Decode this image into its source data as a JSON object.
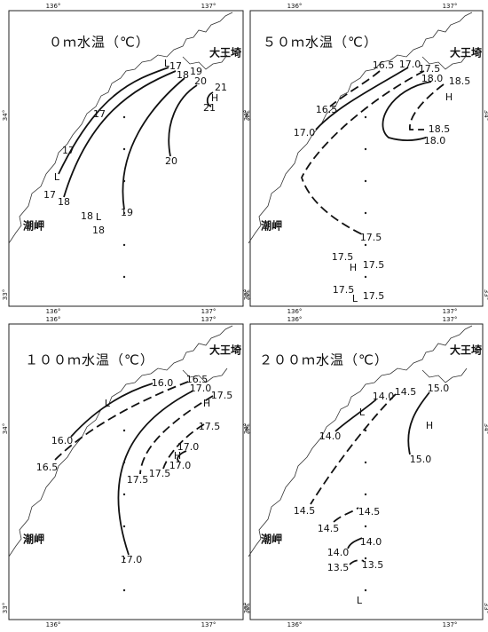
{
  "panels": [
    {
      "title": "０ｍ水温（℃）",
      "cape_east": "大王埼",
      "cape_west": "潮岬",
      "lon_labels": [
        "136°",
        "137°"
      ],
      "lat_labels": [
        "34°",
        "33°"
      ],
      "labels": [
        "L",
        "17",
        "18",
        "19",
        "20",
        "21",
        "H",
        "21",
        "17",
        "17",
        "L",
        "17",
        "18",
        "19",
        "20",
        "18",
        "L",
        "18"
      ]
    },
    {
      "title": "５０ｍ水温（℃）",
      "cape_east": "大王埼",
      "cape_west": "潮岬",
      "lon_labels": [
        "136°",
        "137°"
      ],
      "lat_labels": [
        "34°",
        "33°"
      ],
      "labels": [
        "16.5",
        "17.0",
        "17.5",
        "18.0",
        "18.5",
        "H",
        "16.5",
        "17.0",
        "18.5",
        "18.0",
        "17.5",
        "17.5",
        "H",
        "17.5",
        "17.5",
        "L",
        "17.5"
      ]
    },
    {
      "title": "１００ｍ水温（℃）",
      "cape_east": "大王埼",
      "cape_west": "潮岬",
      "lon_labels": [
        "136°",
        "137°"
      ],
      "lat_labels": [
        "34°",
        "33°"
      ],
      "labels": [
        "16.0",
        "16.5",
        "17.0",
        "17.5",
        "H",
        "L",
        "17.5",
        "16.0",
        "17.0",
        "H",
        "17.0",
        "16.5",
        "17.5",
        "17.5",
        "17.0"
      ]
    },
    {
      "title": "２００ｍ水温（℃）",
      "cape_east": "大王埼",
      "cape_west": "潮岬",
      "lon_labels": [
        "136°",
        "137°"
      ],
      "lat_labels": [
        "34°",
        "33°"
      ],
      "labels": [
        "14.5",
        "15.0",
        "14.0",
        "L",
        "H",
        "14.0",
        "15.0",
        "14.5",
        "14.5",
        "14.5",
        "14.0",
        "14.0",
        "13.5",
        "13.5",
        "L"
      ]
    }
  ]
}
